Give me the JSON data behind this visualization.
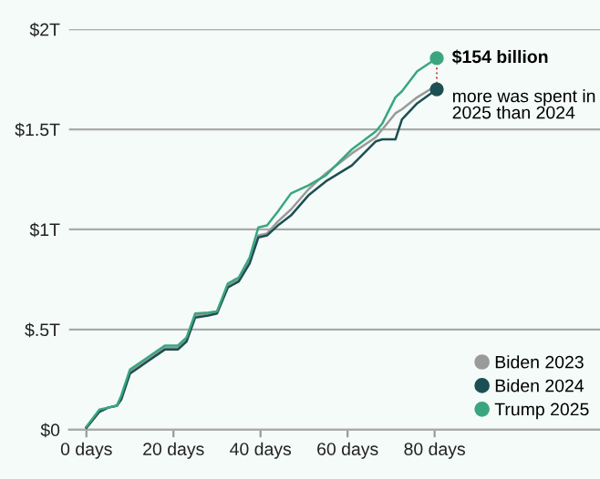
{
  "chart_data": {
    "type": "line",
    "xlim": [
      -4,
      118
    ],
    "ylim": [
      0,
      2
    ],
    "xticks": [
      {
        "value": 0,
        "label": "0 days"
      },
      {
        "value": 20,
        "label": "20 days"
      },
      {
        "value": 40,
        "label": "40 days"
      },
      {
        "value": 60,
        "label": "60 days"
      },
      {
        "value": 80,
        "label": "80 days"
      }
    ],
    "yticks": [
      {
        "value": 0,
        "label": "$0"
      },
      {
        "value": 0.5,
        "label": "$.5T"
      },
      {
        "value": 1,
        "label": "$1T"
      },
      {
        "value": 1.5,
        "label": "$1.5T"
      },
      {
        "value": 2,
        "label": "$2T"
      }
    ],
    "grid": "y",
    "legend": "bottom right",
    "marker": "none",
    "line_style": "solid",
    "x": [
      0,
      3,
      5,
      7,
      8,
      10,
      12,
      14,
      18,
      21,
      23,
      25,
      28,
      30,
      32.5,
      35,
      37.5,
      39.5,
      41.5,
      44,
      47,
      51,
      55,
      61,
      66.5,
      68,
      71,
      72.5,
      76,
      80.5
    ],
    "series": [
      {
        "name": "Biden 2023",
        "color": "#9a9a9a",
        "values": [
          0.01,
          0.09,
          0.11,
          0.12,
          0.16,
          0.29,
          0.32,
          0.35,
          0.41,
          0.41,
          0.45,
          0.57,
          0.58,
          0.59,
          0.72,
          0.75,
          0.84,
          0.97,
          0.98,
          1.04,
          1.1,
          1.2,
          1.28,
          1.38,
          1.46,
          1.5,
          1.58,
          1.6,
          1.66,
          1.72
        ]
      },
      {
        "name": "Biden 2024",
        "color": "#1d4f52",
        "values": [
          0.01,
          0.09,
          0.11,
          0.12,
          0.15,
          0.28,
          0.31,
          0.34,
          0.4,
          0.4,
          0.44,
          0.56,
          0.57,
          0.58,
          0.71,
          0.74,
          0.83,
          0.96,
          0.97,
          1.02,
          1.07,
          1.17,
          1.24,
          1.32,
          1.44,
          1.45,
          1.45,
          1.55,
          1.63,
          1.7
        ]
      },
      {
        "name": "Trump 2025",
        "color": "#3aa67f",
        "values": [
          0.015,
          0.1,
          0.11,
          0.12,
          0.17,
          0.3,
          0.33,
          0.36,
          0.42,
          0.42,
          0.46,
          0.58,
          0.585,
          0.59,
          0.73,
          0.76,
          0.86,
          1.01,
          1.02,
          1.09,
          1.18,
          1.22,
          1.27,
          1.4,
          1.49,
          1.53,
          1.66,
          1.69,
          1.79,
          1.855
        ]
      }
    ],
    "annotations": [
      {
        "text": "$154 billion",
        "x": 80.5,
        "y": 1.855
      },
      {
        "text": "more was spent in\n2025 than 2024",
        "x": 80.5,
        "y": 1.7
      }
    ]
  }
}
